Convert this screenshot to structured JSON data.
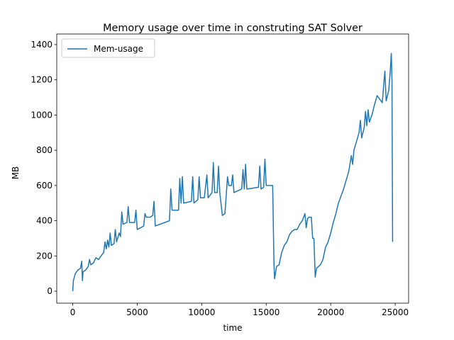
{
  "chart_data": {
    "type": "line",
    "title": "Memory usage over time in construting SAT Solver",
    "x_label": "time",
    "y_label": "MB",
    "xlim": [
      -1240,
      26040
    ],
    "ylim": [
      -68,
      1460
    ],
    "xticks": [
      0,
      5000,
      10000,
      15000,
      20000,
      25000
    ],
    "yticks": [
      0,
      200,
      400,
      600,
      800,
      1000,
      1200,
      1400
    ],
    "legend": "upper left",
    "series": [
      {
        "name": "Mem-usage",
        "color": "#1f77b4",
        "x": [
          0,
          50,
          200,
          400,
          600,
          700,
          750,
          800,
          1000,
          1200,
          1300,
          1400,
          1600,
          1800,
          2000,
          2200,
          2400,
          2500,
          2600,
          2700,
          2800,
          2900,
          3000,
          3200,
          3300,
          3400,
          3600,
          3700,
          3800,
          3900,
          4200,
          4300,
          4400,
          4800,
          4900,
          5000,
          5500,
          5600,
          5700,
          6000,
          6200,
          6300,
          6400,
          7500,
          7600,
          7700,
          8200,
          8300,
          8400,
          8500,
          8600,
          9200,
          9300,
          9400,
          9700,
          9800,
          9900,
          10200,
          10400,
          10500,
          10800,
          10900,
          11000,
          11200,
          11300,
          11400,
          11600,
          11800,
          12000,
          12100,
          12300,
          12400,
          12500,
          13100,
          13200,
          13300,
          13400,
          13500,
          14400,
          14500,
          14600,
          14800,
          14900,
          15000,
          15500,
          15600,
          15650,
          15800,
          16000,
          16200,
          16400,
          16600,
          16800,
          17000,
          17200,
          17400,
          17600,
          17800,
          18000,
          18100,
          18200,
          18300,
          18500,
          18600,
          18700,
          18800,
          18900,
          19200,
          19400,
          19600,
          19800,
          20000,
          20200,
          20400,
          20600,
          20800,
          21000,
          21200,
          21400,
          21600,
          21700,
          21800,
          22000,
          22200,
          22300,
          22400,
          22600,
          22700,
          22800,
          22900,
          23000,
          23200,
          23400,
          23600,
          23800,
          24000,
          24200,
          24300,
          24500,
          24600,
          24700,
          24750,
          24800
        ],
        "values": [
          0,
          60,
          100,
          120,
          130,
          170,
          60,
          110,
          120,
          140,
          180,
          150,
          160,
          190,
          180,
          200,
          220,
          280,
          240,
          290,
          250,
          330,
          260,
          270,
          350,
          280,
          330,
          310,
          450,
          380,
          390,
          480,
          390,
          390,
          460,
          350,
          370,
          440,
          420,
          420,
          430,
          510,
          370,
          400,
          580,
          460,
          460,
          640,
          500,
          650,
          500,
          510,
          650,
          500,
          520,
          650,
          530,
          530,
          660,
          530,
          560,
          730,
          560,
          560,
          710,
          560,
          430,
          440,
          650,
          600,
          600,
          660,
          560,
          580,
          690,
          580,
          720,
          580,
          590,
          710,
          580,
          590,
          750,
          600,
          600,
          160,
          70,
          140,
          150,
          220,
          260,
          280,
          320,
          340,
          350,
          350,
          380,
          400,
          440,
          360,
          410,
          420,
          420,
          300,
          300,
          80,
          130,
          150,
          180,
          250,
          280,
          330,
          390,
          440,
          500,
          540,
          580,
          630,
          680,
          770,
          720,
          800,
          850,
          900,
          970,
          870,
          930,
          1020,
          940,
          1030,
          960,
          1000,
          1060,
          1110,
          1090,
          1070,
          1250,
          1080,
          1140,
          1230,
          1350,
          1200,
          280
        ]
      }
    ]
  }
}
